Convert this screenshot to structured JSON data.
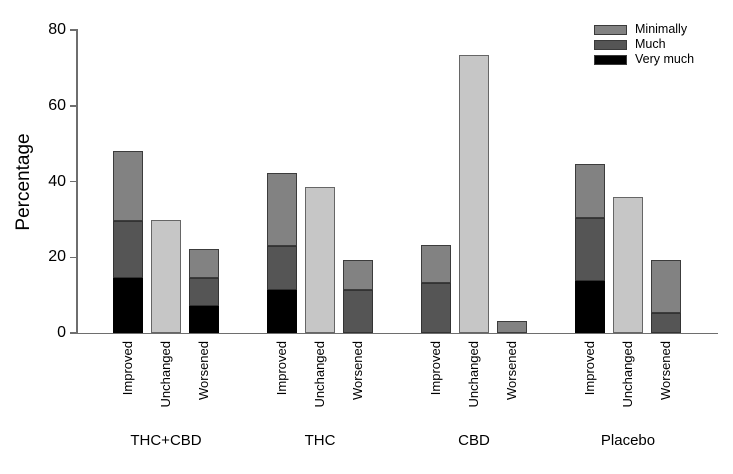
{
  "chart_data": {
    "type": "bar",
    "stacked": true,
    "title": "",
    "xlabel": "",
    "ylabel": "Percentage",
    "ylim": [
      0,
      80
    ],
    "yticks": [
      0,
      20,
      40,
      60,
      80
    ],
    "grid": false,
    "legend": {
      "position": "top-right",
      "entries": [
        {
          "label": "Minimally",
          "key": "minimally"
        },
        {
          "label": "Much",
          "key": "much"
        },
        {
          "label": "Very much",
          "key": "very_much"
        }
      ]
    },
    "colors": {
      "very_much": "#000000",
      "much": "#555555",
      "minimally": "#828282",
      "unchanged": "#c6c6c6"
    },
    "bar_categories": [
      "Improved",
      "Unchanged",
      "Worsened"
    ],
    "groups": [
      {
        "label": "THC+CBD",
        "bars": [
          {
            "category": "Improved",
            "total": 48.1,
            "segments": [
              {
                "label": "Very much",
                "key": "very_much",
                "value": 14.6
              },
              {
                "label": "Much",
                "key": "much",
                "value": 15.1
              },
              {
                "label": "Minimally",
                "key": "minimally",
                "value": 18.4
              }
            ]
          },
          {
            "category": "Unchanged",
            "total": 29.8,
            "segments": [
              {
                "label": "Unchanged",
                "key": "unchanged",
                "value": 29.8
              }
            ]
          },
          {
            "category": "Worsened",
            "total": 22.1,
            "segments": [
              {
                "label": "Very much",
                "key": "very_much",
                "value": 7.1
              },
              {
                "label": "Much",
                "key": "much",
                "value": 7.5
              },
              {
                "label": "Minimally",
                "key": "minimally",
                "value": 7.5
              }
            ]
          }
        ]
      },
      {
        "label": "THC",
        "bars": [
          {
            "category": "Improved",
            "total": 42.3,
            "segments": [
              {
                "label": "Very much",
                "key": "very_much",
                "value": 11.4
              },
              {
                "label": "Much",
                "key": "much",
                "value": 11.6
              },
              {
                "label": "Minimally",
                "key": "minimally",
                "value": 19.3
              }
            ]
          },
          {
            "category": "Unchanged",
            "total": 38.5,
            "segments": [
              {
                "label": "Unchanged",
                "key": "unchanged",
                "value": 38.5
              }
            ]
          },
          {
            "category": "Worsened",
            "total": 19.3,
            "segments": [
              {
                "label": "Much",
                "key": "much",
                "value": 11.4
              },
              {
                "label": "Minimally",
                "key": "minimally",
                "value": 7.9
              }
            ]
          }
        ]
      },
      {
        "label": "CBD",
        "bars": [
          {
            "category": "Improved",
            "total": 23.2,
            "segments": [
              {
                "label": "Much",
                "key": "much",
                "value": 13.1
              },
              {
                "label": "Minimally",
                "key": "minimally",
                "value": 10.1
              }
            ]
          },
          {
            "category": "Unchanged",
            "total": 73.4,
            "segments": [
              {
                "label": "Unchanged",
                "key": "unchanged",
                "value": 73.4
              }
            ]
          },
          {
            "category": "Worsened",
            "total": 3.3,
            "segments": [
              {
                "label": "Minimally",
                "key": "minimally",
                "value": 3.3
              }
            ]
          }
        ]
      },
      {
        "label": "Placebo",
        "bars": [
          {
            "category": "Improved",
            "total": 44.5,
            "segments": [
              {
                "label": "Very much",
                "key": "very_much",
                "value": 13.7
              },
              {
                "label": "Much",
                "key": "much",
                "value": 16.8
              },
              {
                "label": "Minimally",
                "key": "minimally",
                "value": 14.0
              }
            ]
          },
          {
            "category": "Unchanged",
            "total": 36.0,
            "segments": [
              {
                "label": "Unchanged",
                "key": "unchanged",
                "value": 36.0
              }
            ]
          },
          {
            "category": "Worsened",
            "total": 19.3,
            "segments": [
              {
                "label": "Much",
                "key": "much",
                "value": 5.4
              },
              {
                "label": "Minimally",
                "key": "minimally",
                "value": 13.9
              }
            ]
          }
        ]
      }
    ]
  }
}
